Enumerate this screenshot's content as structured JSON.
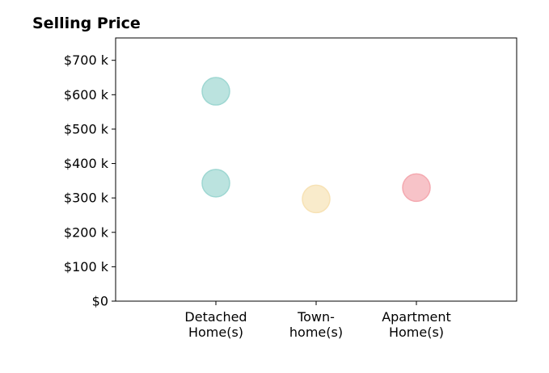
{
  "chart_data": {
    "type": "scatter",
    "title": "Selling Price",
    "xlabel": "",
    "ylabel": "",
    "categories": [
      [
        "Detached",
        "Home(s)"
      ],
      [
        "Town-",
        "home(s)"
      ],
      [
        "Apartment",
        "Home(s)"
      ]
    ],
    "y_ticks": [
      {
        "value": 0,
        "label": "$0"
      },
      {
        "value": 100,
        "label": "$100 k"
      },
      {
        "value": 200,
        "label": "$200 k"
      },
      {
        "value": 300,
        "label": "$300 k"
      },
      {
        "value": 400,
        "label": "$400 k"
      },
      {
        "value": 500,
        "label": "$500 k"
      },
      {
        "value": 600,
        "label": "$600 k"
      },
      {
        "value": 700,
        "label": "$700 k"
      }
    ],
    "ylim": [
      0,
      765
    ],
    "xlim": [
      -1,
      3
    ],
    "grid": false,
    "points": [
      {
        "category_index": 0,
        "value": 610,
        "color": "#9ed7d2"
      },
      {
        "category_index": 0,
        "value": 343,
        "color": "#9ed7d2"
      },
      {
        "category_index": 1,
        "value": 297,
        "color": "#f7e2b5"
      },
      {
        "category_index": 2,
        "value": 330,
        "color": "#f4a9b0"
      }
    ]
  }
}
